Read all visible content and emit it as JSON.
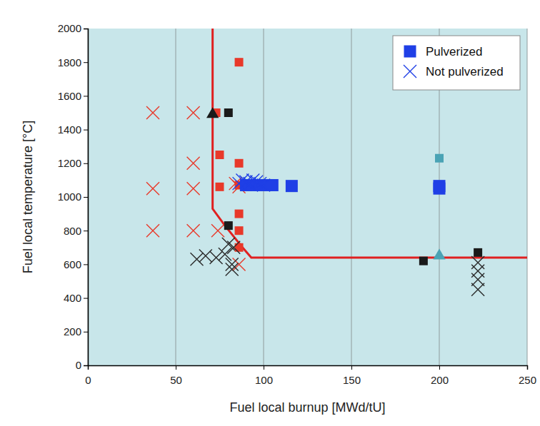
{
  "chart_data": {
    "type": "scatter",
    "x_label": "Fuel local burnup [MWd/tU]",
    "y_label": "Fuel local temperature [°C]",
    "xlim": [
      0,
      250
    ],
    "ylim": [
      0,
      2000
    ],
    "xticks": [
      0,
      50,
      100,
      150,
      200,
      250
    ],
    "yticks": [
      0,
      200,
      400,
      600,
      800,
      1000,
      1200,
      1400,
      1600,
      1800,
      2000
    ],
    "grid": "x",
    "legend": "upper-right",
    "series": [
      {
        "type": "line",
        "color": "#e02020",
        "line_style": "solid",
        "x": [
          71,
          71,
          78,
          88,
          93,
          250
        ],
        "values": [
          2000,
          930,
          830,
          700,
          640,
          640
        ]
      },
      {
        "type": "scatter",
        "color": "#e8392a",
        "marker": "square",
        "x": [
          73,
          75,
          75,
          86,
          86,
          86,
          86,
          86,
          86
        ],
        "values": [
          1500,
          1250,
          1060,
          1800,
          1200,
          1070,
          900,
          800,
          700
        ]
      },
      {
        "type": "scatter",
        "color": "#e8392a",
        "marker": "x",
        "x": [
          37,
          60,
          60,
          37,
          60,
          37,
          60,
          74,
          86,
          86,
          84
        ],
        "values": [
          1500,
          1500,
          1200,
          1050,
          1050,
          800,
          800,
          800,
          1060,
          600,
          1080
        ]
      },
      {
        "type": "scatter",
        "color": "#1a1a1a",
        "marker": "square",
        "x": [
          80,
          80,
          191,
          222
        ],
        "values": [
          1500,
          830,
          620,
          670
        ]
      },
      {
        "type": "scatter",
        "color": "#1a1a1a",
        "marker": "triangle",
        "x": [
          71
        ],
        "values": [
          1490
        ]
      },
      {
        "type": "scatter",
        "color": "#2a2a2a",
        "marker": "x",
        "x": [
          62,
          67,
          73,
          78,
          80,
          82,
          82,
          83,
          222,
          222,
          222,
          222
        ],
        "values": [
          630,
          650,
          640,
          660,
          720,
          600,
          570,
          700,
          610,
          560,
          510,
          450
        ]
      },
      {
        "type": "scatter",
        "name": "Pulverized",
        "color": "#1f3fe6",
        "marker": "big-square",
        "x": [
          90,
          94,
          98,
          102,
          105,
          116,
          200,
          200
        ],
        "values": [
          1070,
          1070,
          1070,
          1070,
          1070,
          1065,
          1065,
          1050
        ]
      },
      {
        "type": "scatter",
        "name": "Not pulverized",
        "color": "#1f3fe6",
        "marker": "x",
        "x": [
          86,
          88,
          90,
          92,
          94,
          96,
          98,
          100
        ],
        "values": [
          1080,
          1100,
          1090,
          1080,
          1100,
          1090,
          1080,
          1070
        ]
      },
      {
        "type": "scatter",
        "color": "#4aa3b5",
        "marker": "square",
        "x": [
          200
        ],
        "values": [
          1230
        ]
      },
      {
        "type": "scatter",
        "color": "#4aa3b5",
        "marker": "triangle",
        "x": [
          200
        ],
        "values": [
          650
        ]
      }
    ]
  }
}
